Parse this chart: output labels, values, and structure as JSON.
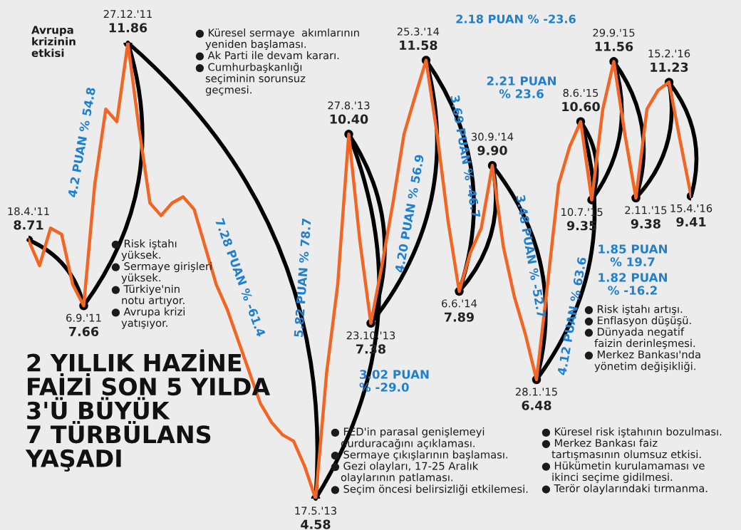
{
  "chart_data": {
    "type": "line",
    "title": "2 YILLIK HAZİNE\nFAİZİ SON 5 YILDA\n3'Ü BÜYÜK\n7 TÜRBÜLANS\nYAŞADI",
    "categories": [
      null,
      null,
      null,
      null,
      null,
      null,
      null,
      null,
      null,
      null,
      null,
      null,
      null,
      null,
      null,
      null,
      null,
      null,
      null,
      null,
      null,
      null,
      null,
      null,
      null,
      null,
      null,
      null,
      null,
      null,
      null,
      null,
      null,
      null,
      null,
      null,
      null,
      null,
      null,
      null,
      null,
      null,
      null,
      null,
      null,
      null,
      null,
      null,
      null,
      null,
      null,
      null,
      null,
      null,
      null,
      null,
      null,
      null,
      null,
      null,
      null
    ],
    "series": [
      {
        "color": "#f26522",
        "values": [
          8.71,
          8.3,
          8.9,
          8.8,
          8.0,
          7.66,
          9.6,
          10.8,
          10.6,
          11.86,
          10.5,
          9.3,
          9.1,
          9.3,
          9.4,
          9.2,
          8.6,
          8.0,
          7.6,
          7.1,
          6.6,
          6.1,
          5.8,
          5.6,
          5.5,
          5.1,
          4.58,
          6.6,
          8.0,
          10.4,
          8.7,
          7.38,
          8.3,
          9.3,
          10.4,
          11.0,
          11.58,
          10.4,
          9.0,
          7.89,
          8.5,
          8.9,
          9.9,
          8.6,
          7.8,
          7.2,
          6.48,
          8.0,
          9.6,
          10.2,
          10.6,
          9.35,
          10.8,
          11.56,
          10.4,
          9.38,
          10.8,
          11.1,
          11.23,
          10.3,
          9.41
        ],
        "value_labels": [
          "8.71",
          null,
          null,
          null,
          null,
          "7.66",
          null,
          null,
          null,
          "11.86",
          null,
          null,
          null,
          null,
          null,
          null,
          null,
          null,
          null,
          null,
          null,
          null,
          null,
          null,
          null,
          null,
          "4.58",
          null,
          null,
          "10.40",
          null,
          "7.38",
          null,
          null,
          null,
          null,
          "11.58",
          null,
          null,
          "7.89",
          null,
          null,
          "9.90",
          null,
          null,
          null,
          "6.48",
          null,
          null,
          null,
          "10.60",
          "9.35",
          null,
          "11.56",
          null,
          "9.38",
          null,
          null,
          "11.23",
          null,
          "9.41"
        ]
      }
    ],
    "line_style": "solid",
    "annotations": [
      "18.4.'11",
      "6.9.'11",
      "27.12.'11",
      "17.5.'13",
      "27.8.'13",
      "23.10.'13",
      "25.3.'14",
      "6.6.'14",
      "30.9.'14",
      "28.1.'15",
      "8.6.'15",
      "10.7.'15",
      "29.9.'15",
      "2.11.'15",
      "15.2.'16",
      "15.4.'16",
      "Avrupa\nkrizinin\netkisi",
      "4.2 PUAN % 54.8",
      "7.28 PUAN % -61.4",
      "5.82 PUAN % 78.7",
      "3.02 PUAN\n% -29.0",
      "4.20 PUAN % 56.9",
      "3.69 PUAN % -46.7",
      "3.48 PUAN % -52.7",
      "4.12 PUAN % 63.6",
      "2.21 PUAN\n% 23.6",
      "2.18 PUAN % -23.6",
      "1.85 PUAN\n% 19.7",
      "1.82 PUAN\n% -16.2",
      "● Risk iştahı\n   yüksek.\n● Sermaye girişleri\n   yüksek.\n● Türkiye'nin\n   notu artıyor.\n● Avrupa krizi\n   yatışıyor.",
      "● Küresel sermaye  akımlarının\n   yeniden başlaması.\n● Ak Parti ile devam kararı.\n● Cumhurbaşkanlığı\n   seçiminin sorunsuz\n   geçmesi.",
      "● FED'in parasal genişlemeyi\n   durduracağını açıklaması.\n● Sermaye çıkışlarının başlaması.\n● Gezi olayları, 17-25 Aralık\n   olaylarının patlaması.\n● Seçim öncesi belirsizliği etkilemesi.",
      "● Risk iştahı artışı.\n● Enflasyon düşüşü.\n● Dünyada negatif\n   faizin derinleşmesi.\n● Merkez Bankası'nda\n   yönetim değişikliği.",
      "● Küresel risk iştahının bozulması.\n● Merkez Bankası faiz\n   tartışmasının olumsuz etkisi.\n● Hükümetin kurulamaması ve\n   ikinci seçime gidilmesi.\n● Terör olaylarındaki tırmanma."
    ]
  }
}
